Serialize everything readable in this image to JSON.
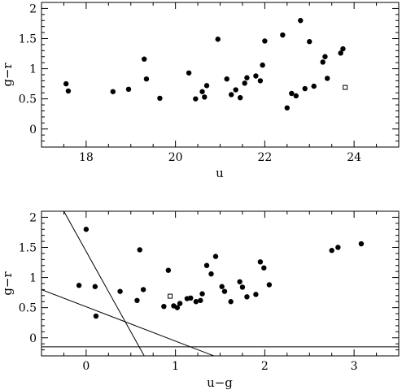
{
  "chart_data": [
    {
      "type": "scatter",
      "xlabel": "u",
      "ylabel": "g−r",
      "xlim": [
        17,
        25
      ],
      "ylim": [
        -0.3,
        2.1
      ],
      "xticks": [
        18,
        20,
        22,
        24
      ],
      "yticks": [
        0,
        0.5,
        1,
        1.5,
        2
      ],
      "xtick_labels": [
        "18",
        "20",
        "22",
        "24"
      ],
      "ytick_labels": [
        "0",
        "0.5",
        "1",
        "1.5",
        "2"
      ],
      "series": [
        {
          "marker": "filled-circle",
          "points": [
            [
              17.55,
              0.75
            ],
            [
              17.6,
              0.63
            ],
            [
              18.6,
              0.62
            ],
            [
              18.95,
              0.66
            ],
            [
              19.3,
              1.16
            ],
            [
              19.35,
              0.83
            ],
            [
              19.65,
              0.51
            ],
            [
              20.3,
              0.93
            ],
            [
              20.45,
              0.5
            ],
            [
              20.6,
              0.62
            ],
            [
              20.65,
              0.53
            ],
            [
              20.7,
              0.72
            ],
            [
              20.95,
              1.49
            ],
            [
              21.15,
              0.83
            ],
            [
              21.25,
              0.57
            ],
            [
              21.35,
              0.65
            ],
            [
              21.45,
              0.52
            ],
            [
              21.55,
              0.76
            ],
            [
              21.6,
              0.85
            ],
            [
              21.8,
              0.88
            ],
            [
              21.9,
              0.8
            ],
            [
              21.95,
              1.06
            ],
            [
              22.0,
              1.46
            ],
            [
              22.4,
              1.56
            ],
            [
              22.5,
              0.35
            ],
            [
              22.6,
              0.59
            ],
            [
              22.7,
              0.55
            ],
            [
              22.8,
              1.8
            ],
            [
              22.9,
              0.67
            ],
            [
              23.0,
              1.45
            ],
            [
              23.1,
              0.71
            ],
            [
              23.3,
              1.11
            ],
            [
              23.35,
              1.2
            ],
            [
              23.4,
              0.84
            ],
            [
              23.7,
              1.26
            ],
            [
              23.75,
              1.33
            ]
          ]
        },
        {
          "marker": "open-square",
          "points": [
            [
              23.8,
              0.69
            ]
          ]
        }
      ],
      "grid": false
    },
    {
      "type": "scatter",
      "xlabel": "u−g",
      "ylabel": "g−r",
      "xlim": [
        -0.5,
        3.5
      ],
      "ylim": [
        -0.3,
        2.1
      ],
      "xticks": [
        0,
        1,
        2,
        3
      ],
      "yticks": [
        0,
        0.5,
        1,
        1.5,
        2
      ],
      "xtick_labels": [
        "0",
        "1",
        "2",
        "3"
      ],
      "ytick_labels": [
        "0",
        "0.5",
        "1",
        "1.5",
        "2"
      ],
      "series": [
        {
          "marker": "filled-circle",
          "points": [
            [
              -0.08,
              0.87
            ],
            [
              0.0,
              1.8
            ],
            [
              0.1,
              0.85
            ],
            [
              0.11,
              0.36
            ],
            [
              0.38,
              0.77
            ],
            [
              0.57,
              0.62
            ],
            [
              0.6,
              1.46
            ],
            [
              0.64,
              0.8
            ],
            [
              0.87,
              0.52
            ],
            [
              0.92,
              1.12
            ],
            [
              0.98,
              0.53
            ],
            [
              1.02,
              0.5
            ],
            [
              1.05,
              0.57
            ],
            [
              1.13,
              0.65
            ],
            [
              1.17,
              0.66
            ],
            [
              1.23,
              0.6
            ],
            [
              1.28,
              0.62
            ],
            [
              1.3,
              0.73
            ],
            [
              1.35,
              1.2
            ],
            [
              1.4,
              1.06
            ],
            [
              1.45,
              1.35
            ],
            [
              1.52,
              0.85
            ],
            [
              1.55,
              0.77
            ],
            [
              1.62,
              0.6
            ],
            [
              1.72,
              0.93
            ],
            [
              1.75,
              0.84
            ],
            [
              1.8,
              0.68
            ],
            [
              1.9,
              0.72
            ],
            [
              1.95,
              1.26
            ],
            [
              1.99,
              1.16
            ],
            [
              2.05,
              0.88
            ],
            [
              2.75,
              1.45
            ],
            [
              2.82,
              1.5
            ],
            [
              3.08,
              1.56
            ]
          ]
        },
        {
          "marker": "open-square",
          "points": [
            [
              0.94,
              0.69
            ]
          ]
        }
      ],
      "lines": [
        {
          "x1": -0.25,
          "y1": 2.1,
          "x2": 0.65,
          "y2": -0.3
        },
        {
          "x1": -0.5,
          "y1": 0.8,
          "x2": 1.43,
          "y2": -0.3
        },
        {
          "x1": -0.5,
          "y1": -0.15,
          "x2": 3.5,
          "y2": -0.15
        }
      ],
      "grid": false
    }
  ]
}
